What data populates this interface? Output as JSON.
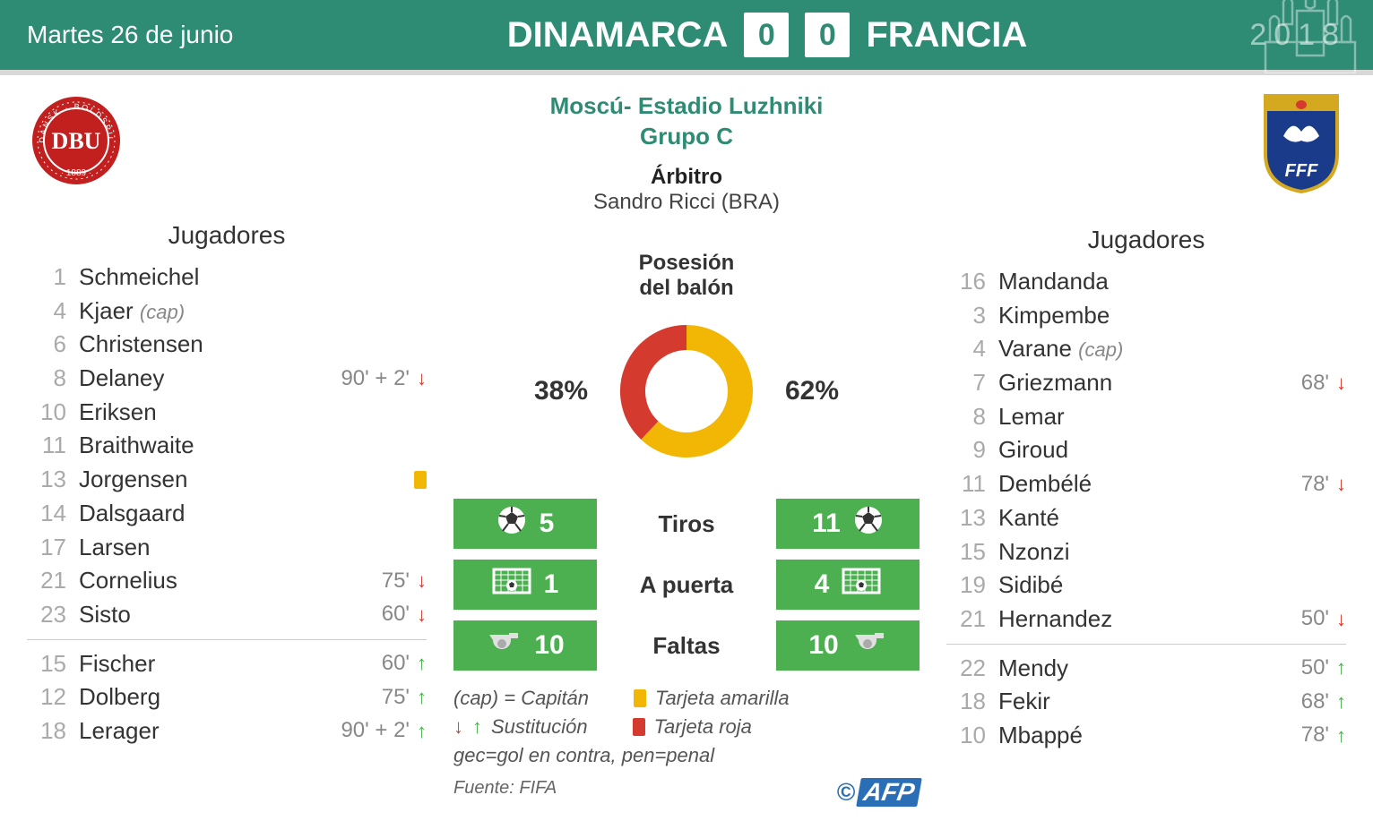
{
  "header": {
    "date": "Martes 26 de junio",
    "team_a": "DINAMARCA",
    "score_a": "0",
    "score_b": "0",
    "team_b": "FRANCIA",
    "year": "2018",
    "bg_color": "#2e8b74"
  },
  "venue": {
    "line1": "Moscú- Estadio Luzhniki",
    "line2": "Grupo C",
    "color": "#2e8b74"
  },
  "referee": {
    "label": "Árbitro",
    "name": "Sandro Ricci (BRA)"
  },
  "players_label": "Jugadores",
  "team_a_crest": {
    "main_color": "#c21f1f",
    "text": "DBU",
    "sub": "1889"
  },
  "team_b_crest": {
    "main_color": "#1a3a8a",
    "gold": "#d4a81f",
    "text": "FFF"
  },
  "team_a_players": [
    {
      "num": "1",
      "name": "Schmeichel"
    },
    {
      "num": "4",
      "name": "Kjaer",
      "cap": true
    },
    {
      "num": "6",
      "name": "Christensen"
    },
    {
      "num": "8",
      "name": "Delaney",
      "time": "90' + 2'",
      "sub": "out"
    },
    {
      "num": "10",
      "name": "Eriksen"
    },
    {
      "num": "11",
      "name": "Braithwaite"
    },
    {
      "num": "13",
      "name": "Jorgensen",
      "yellow": true
    },
    {
      "num": "14",
      "name": "Dalsgaard"
    },
    {
      "num": "17",
      "name": "Larsen"
    },
    {
      "num": "21",
      "name": "Cornelius",
      "time": "75'",
      "sub": "out"
    },
    {
      "num": "23",
      "name": "Sisto",
      "time": "60'",
      "sub": "out"
    }
  ],
  "team_a_subs": [
    {
      "num": "15",
      "name": "Fischer",
      "time": "60'",
      "sub": "in"
    },
    {
      "num": "12",
      "name": "Dolberg",
      "time": "75'",
      "sub": "in"
    },
    {
      "num": "18",
      "name": "Lerager",
      "time": "90' + 2'",
      "sub": "in"
    }
  ],
  "team_b_players": [
    {
      "num": "16",
      "name": "Mandanda"
    },
    {
      "num": "3",
      "name": "Kimpembe"
    },
    {
      "num": "4",
      "name": "Varane",
      "cap": true
    },
    {
      "num": "7",
      "name": "Griezmann",
      "time": "68'",
      "sub": "out"
    },
    {
      "num": "8",
      "name": "Lemar"
    },
    {
      "num": "9",
      "name": "Giroud"
    },
    {
      "num": "11",
      "name": "Dembélé",
      "time": "78'",
      "sub": "out"
    },
    {
      "num": "13",
      "name": "Kanté"
    },
    {
      "num": "15",
      "name": "Nzonzi"
    },
    {
      "num": "19",
      "name": "Sidibé"
    },
    {
      "num": "21",
      "name": "Hernandez",
      "time": "50'",
      "sub": "out"
    }
  ],
  "team_b_subs": [
    {
      "num": "22",
      "name": "Mendy",
      "time": "50'",
      "sub": "in"
    },
    {
      "num": "18",
      "name": "Fekir",
      "time": "68'",
      "sub": "in"
    },
    {
      "num": "10",
      "name": "Mbappé",
      "time": "78'",
      "sub": "in"
    }
  ],
  "possession": {
    "title1": "Posesión",
    "title2": "del balón",
    "pct_a": 38,
    "pct_b": 62,
    "color_a": "#d53a2e",
    "color_b": "#f2b705",
    "label_a": "38%",
    "label_b": "62%"
  },
  "stats": [
    {
      "label": "Tiros",
      "a": "5",
      "b": "11",
      "icon": "ball"
    },
    {
      "label": "A puerta",
      "a": "1",
      "b": "4",
      "icon": "goal"
    },
    {
      "label": "Faltas",
      "a": "10",
      "b": "10",
      "icon": "whistle"
    }
  ],
  "stat_box_color": "#4caf50",
  "legend": {
    "cap": "(cap) = Capitán",
    "yellow": "Tarjeta amarilla",
    "sub": "Sustitución",
    "red": "Tarjeta roja",
    "gec": "gec=gol en contra, pen=penal"
  },
  "source": "Fuente: FIFA",
  "credit": "AFP",
  "colors": {
    "arrow_out": "#d53a2e",
    "arrow_in": "#4caf50",
    "yellow_card": "#f2b705",
    "red_card": "#d53a2e",
    "num_gray": "#aaaaaa",
    "time_gray": "#888888"
  }
}
